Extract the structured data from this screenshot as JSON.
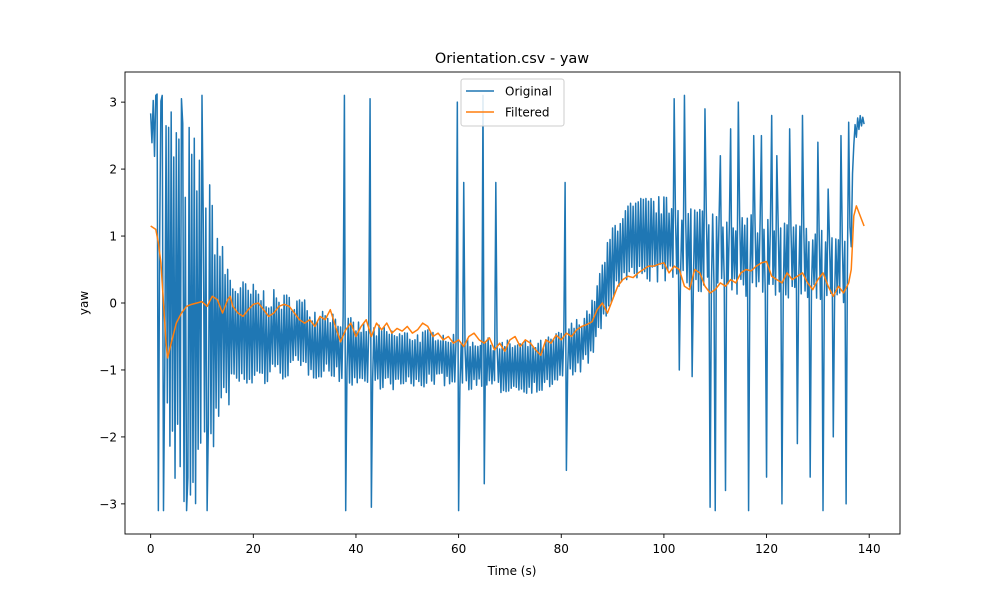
{
  "chart_data": {
    "type": "line",
    "title": "Orientation.csv - yaw",
    "xlabel": "Time (s)",
    "ylabel": "yaw",
    "xlim": [
      -5,
      146
    ],
    "ylim": [
      -3.45,
      3.45
    ],
    "xticks": [
      0,
      20,
      40,
      60,
      80,
      100,
      120,
      140
    ],
    "yticks": [
      -3,
      -2,
      -1,
      0,
      1,
      2,
      3
    ],
    "ytick_labels": [
      "−3",
      "−2",
      "−1",
      "0",
      "1",
      "2",
      "3"
    ],
    "grid": false,
    "legend_position": "top-center",
    "series": [
      {
        "name": "Original",
        "color": "#1f77b4",
        "line_width": 1.5,
        "base": [
          [
            0,
            2.75
          ],
          [
            1,
            2.6
          ],
          [
            2,
            1.9
          ],
          [
            3,
            0.6
          ],
          [
            4,
            0.1
          ],
          [
            6,
            -0.2
          ],
          [
            8,
            -0.3
          ],
          [
            10,
            -0.3
          ],
          [
            12,
            -0.3
          ],
          [
            14,
            -0.5
          ],
          [
            16,
            -0.45
          ],
          [
            18,
            -0.5
          ],
          [
            20,
            -0.5
          ],
          [
            24,
            -0.5
          ],
          [
            26,
            -0.5
          ],
          [
            28,
            -0.45
          ],
          [
            30,
            -0.5
          ],
          [
            32,
            -0.6
          ],
          [
            34,
            -0.55
          ],
          [
            36,
            -0.65
          ],
          [
            38,
            -0.7
          ],
          [
            40,
            -0.75
          ],
          [
            44,
            -0.8
          ],
          [
            48,
            -0.85
          ],
          [
            52,
            -0.85
          ],
          [
            56,
            -0.8
          ],
          [
            60,
            -0.9
          ],
          [
            64,
            -0.9
          ],
          [
            68,
            -0.95
          ],
          [
            72,
            -0.95
          ],
          [
            76,
            -0.95
          ],
          [
            80,
            -0.8
          ],
          [
            84,
            -0.6
          ],
          [
            86,
            -0.4
          ],
          [
            88,
            0.1
          ],
          [
            90,
            0.6
          ],
          [
            92,
            0.85
          ],
          [
            96,
            0.95
          ],
          [
            100,
            0.95
          ],
          [
            104,
            0.85
          ],
          [
            108,
            0.8
          ],
          [
            112,
            0.75
          ],
          [
            116,
            0.7
          ],
          [
            120,
            0.7
          ],
          [
            124,
            0.65
          ],
          [
            128,
            0.6
          ],
          [
            132,
            0.55
          ],
          [
            135,
            0.5
          ],
          [
            136.5,
            1.0
          ],
          [
            137,
            2.5
          ],
          [
            138,
            2.7
          ],
          [
            139,
            2.72
          ]
        ],
        "amp": [
          [
            0,
            0.15
          ],
          [
            2,
            1.6
          ],
          [
            4,
            3.0
          ],
          [
            8,
            3.0
          ],
          [
            10,
            2.5
          ],
          [
            12,
            2.0
          ],
          [
            14,
            1.4
          ],
          [
            16,
            0.9
          ],
          [
            20,
            0.8
          ],
          [
            24,
            0.7
          ],
          [
            28,
            0.6
          ],
          [
            32,
            0.55
          ],
          [
            40,
            0.5
          ],
          [
            50,
            0.45
          ],
          [
            60,
            0.4
          ],
          [
            70,
            0.4
          ],
          [
            80,
            0.4
          ],
          [
            86,
            0.45
          ],
          [
            90,
            0.6
          ],
          [
            96,
            0.65
          ],
          [
            104,
            0.65
          ],
          [
            112,
            0.65
          ],
          [
            120,
            0.6
          ],
          [
            130,
            0.55
          ],
          [
            135,
            0.55
          ],
          [
            136.5,
            0.2
          ],
          [
            139,
            0.08
          ]
        ],
        "period": 0.5,
        "x_end": 139,
        "spikes": [
          [
            37.7,
            3.1
          ],
          [
            37.9,
            -3.1
          ],
          [
            42.8,
            3.05
          ],
          [
            43.0,
            -3.05
          ],
          [
            59.8,
            3.0
          ],
          [
            59.9,
            -3.1
          ],
          [
            61.0,
            1.8
          ],
          [
            64.8,
            3.1
          ],
          [
            65.1,
            -2.7
          ],
          [
            67.2,
            1.8
          ],
          [
            80.8,
            1.8
          ],
          [
            81.0,
            -2.5
          ],
          [
            102.0,
            3.05
          ],
          [
            103.0,
            -1.0
          ],
          [
            104.0,
            3.1
          ],
          [
            105.5,
            -1.1
          ],
          [
            108.0,
            2.9
          ],
          [
            109.0,
            -3.05
          ],
          [
            110.0,
            -3.1
          ],
          [
            111.0,
            2.2
          ],
          [
            112.0,
            -2.8
          ],
          [
            113.0,
            2.6
          ],
          [
            114.5,
            3.0
          ],
          [
            116.5,
            -3.1
          ],
          [
            117.5,
            2.5
          ],
          [
            119.0,
            2.5
          ],
          [
            120.0,
            -2.6
          ],
          [
            121.0,
            2.8
          ],
          [
            122.0,
            2.2
          ],
          [
            123.0,
            -3.0
          ],
          [
            124.5,
            2.6
          ],
          [
            126.0,
            -2.1
          ],
          [
            127.0,
            2.8
          ],
          [
            128.5,
            -2.6
          ],
          [
            130.0,
            2.4
          ],
          [
            131.0,
            -3.1
          ],
          [
            132.0,
            1.7
          ],
          [
            133.0,
            -2.0
          ],
          [
            134.5,
            2.5
          ],
          [
            135.5,
            -3.0
          ],
          [
            136.0,
            2.7
          ],
          [
            10.0,
            3.1
          ],
          [
            11.0,
            -3.1
          ],
          [
            6.0,
            3.05
          ],
          [
            7.0,
            -3.1
          ],
          [
            1.0,
            3.1
          ],
          [
            1.5,
            -3.1
          ],
          [
            2.2,
            3.1
          ],
          [
            2.6,
            -3.1
          ]
        ]
      },
      {
        "name": "Filtered",
        "color": "#ff7f0e",
        "line_width": 1.5,
        "points": [
          [
            0,
            1.15
          ],
          [
            1,
            1.1
          ],
          [
            1.5,
            0.9
          ],
          [
            2,
            0.6
          ],
          [
            2.5,
            0.0
          ],
          [
            3,
            -0.6
          ],
          [
            3.3,
            -0.82
          ],
          [
            4,
            -0.6
          ],
          [
            5,
            -0.3
          ],
          [
            6,
            -0.15
          ],
          [
            7,
            -0.05
          ],
          [
            8,
            -0.02
          ],
          [
            9,
            0.0
          ],
          [
            10,
            0.02
          ],
          [
            11,
            -0.05
          ],
          [
            12,
            0.1
          ],
          [
            13,
            0.05
          ],
          [
            14,
            -0.15
          ],
          [
            15,
            0.05
          ],
          [
            15.5,
            0.1
          ],
          [
            16,
            -0.05
          ],
          [
            17,
            -0.15
          ],
          [
            18,
            -0.2
          ],
          [
            19,
            -0.1
          ],
          [
            20,
            -0.02
          ],
          [
            21,
            0.0
          ],
          [
            22,
            -0.1
          ],
          [
            23,
            -0.2
          ],
          [
            24,
            -0.15
          ],
          [
            25,
            -0.05
          ],
          [
            26,
            -0.02
          ],
          [
            27,
            -0.05
          ],
          [
            28,
            -0.15
          ],
          [
            29,
            -0.25
          ],
          [
            30,
            -0.3
          ],
          [
            31,
            -0.25
          ],
          [
            32,
            -0.35
          ],
          [
            33,
            -0.2
          ],
          [
            34,
            -0.25
          ],
          [
            35,
            -0.1
          ],
          [
            36,
            -0.35
          ],
          [
            37,
            -0.58
          ],
          [
            38,
            -0.4
          ],
          [
            39,
            -0.3
          ],
          [
            40,
            -0.5
          ],
          [
            41,
            -0.35
          ],
          [
            42,
            -0.25
          ],
          [
            43,
            -0.5
          ],
          [
            44,
            -0.3
          ],
          [
            45,
            -0.4
          ],
          [
            46,
            -0.3
          ],
          [
            47,
            -0.45
          ],
          [
            48,
            -0.38
          ],
          [
            49,
            -0.42
          ],
          [
            50,
            -0.35
          ],
          [
            51,
            -0.45
          ],
          [
            52,
            -0.4
          ],
          [
            53,
            -0.3
          ],
          [
            54,
            -0.35
          ],
          [
            55,
            -0.5
          ],
          [
            56,
            -0.45
          ],
          [
            57,
            -0.55
          ],
          [
            58,
            -0.5
          ],
          [
            59,
            -0.6
          ],
          [
            60,
            -0.55
          ],
          [
            61,
            -0.65
          ],
          [
            62,
            -0.5
          ],
          [
            63,
            -0.45
          ],
          [
            64,
            -0.55
          ],
          [
            65,
            -0.6
          ],
          [
            66,
            -0.52
          ],
          [
            67,
            -0.7
          ],
          [
            68,
            -0.6
          ],
          [
            69,
            -0.72
          ],
          [
            70,
            -0.55
          ],
          [
            71,
            -0.5
          ],
          [
            72,
            -0.65
          ],
          [
            73,
            -0.55
          ],
          [
            74,
            -0.6
          ],
          [
            75,
            -0.7
          ],
          [
            76,
            -0.78
          ],
          [
            77,
            -0.55
          ],
          [
            78,
            -0.6
          ],
          [
            79,
            -0.48
          ],
          [
            80,
            -0.55
          ],
          [
            81,
            -0.45
          ],
          [
            82,
            -0.5
          ],
          [
            83,
            -0.4
          ],
          [
            84,
            -0.35
          ],
          [
            85,
            -0.32
          ],
          [
            86,
            -0.28
          ],
          [
            87,
            -0.1
          ],
          [
            88,
            0.0
          ],
          [
            89,
            -0.15
          ],
          [
            90,
            0.05
          ],
          [
            91,
            0.25
          ],
          [
            92,
            0.35
          ],
          [
            93,
            0.4
          ],
          [
            94,
            0.38
          ],
          [
            95,
            0.45
          ],
          [
            96,
            0.5
          ],
          [
            97,
            0.55
          ],
          [
            98,
            0.55
          ],
          [
            99,
            0.58
          ],
          [
            100,
            0.6
          ],
          [
            101,
            0.45
          ],
          [
            102,
            0.55
          ],
          [
            103,
            0.5
          ],
          [
            104,
            0.25
          ],
          [
            105,
            0.2
          ],
          [
            106,
            0.5
          ],
          [
            107,
            0.45
          ],
          [
            108,
            0.25
          ],
          [
            109,
            0.15
          ],
          [
            110,
            0.2
          ],
          [
            111,
            0.3
          ],
          [
            112,
            0.25
          ],
          [
            113,
            0.35
          ],
          [
            114,
            0.3
          ],
          [
            115,
            0.45
          ],
          [
            116,
            0.5
          ],
          [
            117,
            0.48
          ],
          [
            118,
            0.55
          ],
          [
            119,
            0.6
          ],
          [
            120,
            0.62
          ],
          [
            121,
            0.4
          ],
          [
            122,
            0.35
          ],
          [
            123,
            0.3
          ],
          [
            124,
            0.45
          ],
          [
            125,
            0.35
          ],
          [
            126,
            0.4
          ],
          [
            127,
            0.45
          ],
          [
            128,
            0.3
          ],
          [
            129,
            0.2
          ],
          [
            130,
            0.35
          ],
          [
            131,
            0.45
          ],
          [
            132,
            0.25
          ],
          [
            133,
            0.1
          ],
          [
            134,
            0.25
          ],
          [
            135,
            0.15
          ],
          [
            136,
            0.3
          ],
          [
            136.5,
            0.5
          ],
          [
            137,
            1.3
          ],
          [
            137.5,
            1.45
          ],
          [
            138,
            1.35
          ],
          [
            139,
            1.15
          ]
        ]
      }
    ]
  }
}
